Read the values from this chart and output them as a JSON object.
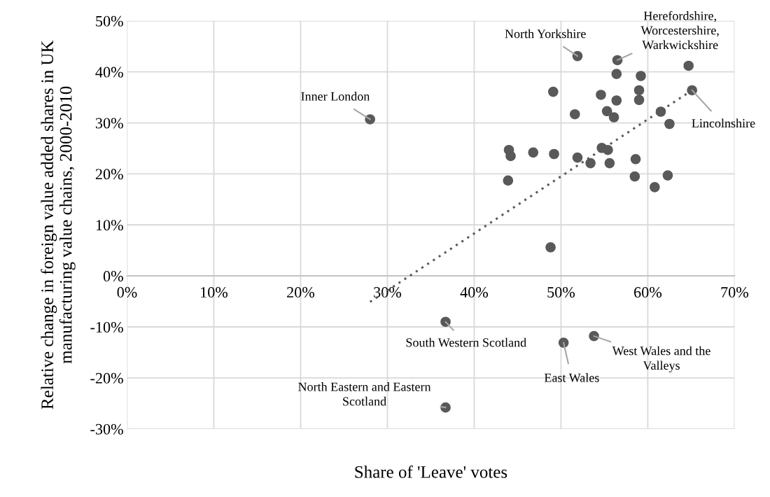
{
  "chart_data": {
    "type": "scatter",
    "xlabel": "Share of 'Leave' votes",
    "ylabel": "Relative change in foreign value added shares in UK manufacturing value chains, 2000-2010",
    "xlim": [
      0,
      70
    ],
    "xticks": [
      {
        "value": 0,
        "label": "0%"
      },
      {
        "value": 10,
        "label": "10%"
      },
      {
        "value": 20,
        "label": "20%"
      },
      {
        "value": 30,
        "label": "30%"
      },
      {
        "value": 40,
        "label": "40%"
      },
      {
        "value": 50,
        "label": "50%"
      },
      {
        "value": 60,
        "label": "60%"
      },
      {
        "value": 70,
        "label": "70%"
      }
    ],
    "ylim": [
      -30,
      50
    ],
    "yticks": [
      {
        "value": -30,
        "label": "-30%"
      },
      {
        "value": -20,
        "label": "-20%"
      },
      {
        "value": -10,
        "label": "-10%"
      },
      {
        "value": 0,
        "label": "0%"
      },
      {
        "value": 10,
        "label": "10%"
      },
      {
        "value": 20,
        "label": "20%"
      },
      {
        "value": 30,
        "label": "30%"
      },
      {
        "value": 40,
        "label": "40%"
      },
      {
        "value": 50,
        "label": "50%"
      }
    ],
    "grid": true,
    "marker": "circle",
    "legend": false,
    "series": [
      {
        "color": "#595959",
        "x": [
          28.0,
          51.9,
          56.5,
          56.4,
          59.2,
          64.7,
          49.1,
          54.6,
          59.0,
          56.4,
          59.0,
          65.1,
          55.3,
          56.1,
          51.6,
          61.5,
          62.5,
          44.0,
          44.2,
          46.8,
          49.2,
          51.9,
          53.4,
          54.7,
          55.4,
          55.6,
          58.6,
          58.5,
          62.3,
          60.8,
          43.9,
          48.8,
          36.7,
          50.3,
          53.8,
          36.7
        ],
        "values": [
          30.7,
          43.1,
          42.3,
          39.6,
          39.2,
          41.2,
          36.1,
          35.5,
          36.4,
          34.4,
          34.5,
          36.4,
          32.3,
          31.1,
          31.7,
          32.2,
          29.8,
          24.7,
          23.5,
          24.2,
          23.9,
          23.2,
          22.1,
          25.1,
          24.7,
          22.1,
          22.9,
          19.5,
          19.7,
          17.4,
          18.7,
          5.6,
          -9.0,
          -13.1,
          -11.8,
          -25.8
        ]
      },
      {
        "type": "line",
        "color": "#595959",
        "line_style": "dotted",
        "marker": "none",
        "x": [
          28.0,
          65.1
        ],
        "values": [
          -5.1,
          36.4
        ]
      }
    ],
    "annotations": [
      {
        "text": "Inner London",
        "x": 28.0,
        "y": 30.7
      },
      {
        "text": "North Yorkshire",
        "x": 51.9,
        "y": 43.1
      },
      {
        "text": "Herefordshire,\nWorcestershire,\nWarkwickshire",
        "x": 56.5,
        "y": 42.3
      },
      {
        "text": "Lincolnshire",
        "x": 65.1,
        "y": 36.4
      },
      {
        "text": "South Western Scotland",
        "x": 36.7,
        "y": -9.0
      },
      {
        "text": "East Wales",
        "x": 50.3,
        "y": -13.1
      },
      {
        "text": "West Wales and the\nValleys",
        "x": 53.8,
        "y": -11.8
      },
      {
        "text": "North Eastern and Eastern\nScotland",
        "x": 36.7,
        "y": -25.8
      }
    ]
  }
}
